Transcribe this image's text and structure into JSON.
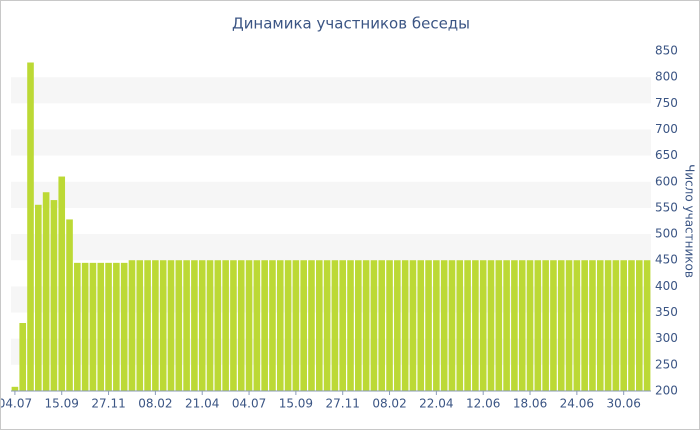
{
  "chart_data": {
    "type": "bar",
    "title": "Динамика участников беседы",
    "y_label": "Число участников",
    "categories": [
      "04.07",
      null,
      null,
      null,
      null,
      null,
      "15.09",
      null,
      null,
      null,
      null,
      null,
      "27.11",
      null,
      null,
      null,
      null,
      null,
      "08.02",
      null,
      null,
      null,
      null,
      null,
      "21.04",
      null,
      null,
      null,
      null,
      null,
      "04.07",
      null,
      null,
      null,
      null,
      null,
      "15.09",
      null,
      null,
      null,
      null,
      null,
      "27.11",
      null,
      null,
      null,
      null,
      null,
      "08.02",
      null,
      null,
      null,
      null,
      null,
      "22.04",
      null,
      null,
      null,
      null,
      null,
      "12.06",
      null,
      null,
      null,
      null,
      null,
      "18.06",
      null,
      null,
      null,
      null,
      null,
      "24.06",
      null,
      null,
      null,
      null,
      null,
      "30.06",
      null,
      null,
      null
    ],
    "values": [
      208,
      330,
      828,
      556,
      580,
      565,
      610,
      528,
      445,
      445,
      445,
      445,
      445,
      445,
      445,
      450,
      450,
      450,
      450,
      450,
      450,
      450,
      450,
      450,
      450,
      450,
      450,
      450,
      450,
      450,
      450,
      450,
      450,
      450,
      450,
      450,
      450,
      450,
      450,
      450,
      450,
      450,
      450,
      450,
      450,
      450,
      450,
      450,
      450,
      450,
      450,
      450,
      450,
      450,
      450,
      450,
      450,
      450,
      450,
      450,
      450,
      450,
      450,
      450,
      450,
      450,
      450,
      450,
      450,
      450,
      450,
      450,
      450,
      450,
      450,
      450,
      450,
      450,
      450,
      450,
      450,
      450
    ],
    "color": "#bcd935",
    "ylim": [
      200,
      850
    ],
    "yticks": [
      200,
      250,
      300,
      350,
      400,
      450,
      500,
      550,
      600,
      650,
      700,
      750,
      800,
      850
    ],
    "y_axis_side": "right",
    "grid": true
  }
}
